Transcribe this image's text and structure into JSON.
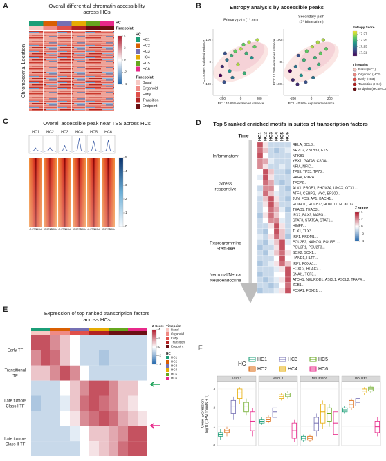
{
  "hc_groups": [
    {
      "name": "HC1",
      "color": "#1b9e77"
    },
    {
      "name": "HC2",
      "color": "#d95f02"
    },
    {
      "name": "HC3",
      "color": "#7570b3"
    },
    {
      "name": "HC4",
      "color": "#e6ab02"
    },
    {
      "name": "HC5",
      "color": "#66a61e"
    },
    {
      "name": "HC6",
      "color": "#e7298a"
    }
  ],
  "timepoints": [
    {
      "name": "Basal",
      "color": "#f7c9c4"
    },
    {
      "name": "Organoid",
      "color": "#f08a84"
    },
    {
      "name": "Early",
      "color": "#e0504a"
    },
    {
      "name": "Transition",
      "color": "#b22222"
    },
    {
      "name": "Endpoint",
      "color": "#6b0f12"
    }
  ],
  "panel_a": {
    "letter": "A",
    "title": [
      "Overall differential chromatin accessibility",
      "across HCs"
    ],
    "y_label": "Chromosomal Location",
    "hc_legend_title": "HC",
    "timepoint_legend_title": "Timepoint",
    "zlim": [
      -4,
      4
    ],
    "zticks": [
      4,
      2,
      0,
      -2,
      -4
    ]
  },
  "panel_b": {
    "letter": "B",
    "title": "Entropy analysis by accessible peaks",
    "plots": [
      {
        "subtitle": [
          "Primary path (1° arc)"
        ],
        "y_label": "PC2: 8.68% explained variance",
        "x_label": "PC1: 40.86% explained variance",
        "xlim": [
          -300,
          300
        ],
        "ylim": [
          -150,
          150
        ],
        "xticks": [
          -200,
          0,
          200
        ],
        "yticks": [
          -100,
          0,
          100
        ],
        "x": [
          -220,
          -200,
          -180,
          -150,
          -120,
          -100,
          -60,
          -30,
          0,
          30,
          60,
          90,
          120,
          150,
          180,
          -170,
          -90,
          40
        ],
        "y": [
          -60,
          -20,
          -90,
          10,
          -40,
          30,
          50,
          -10,
          60,
          80,
          40,
          90,
          20,
          70,
          100,
          40,
          -70,
          -50
        ],
        "entropy": [
          17.2,
          17.21,
          17.22,
          17.23,
          17.24,
          17.25,
          17.26,
          17.27,
          17.27,
          17.26,
          17.25,
          17.27,
          17.24,
          17.26,
          17.27,
          17.22,
          17.23,
          17.25
        ]
      },
      {
        "subtitle": [
          "Secondary path",
          "(2° bifurcation)"
        ],
        "y_label": "PC2: 12.20% explained variance",
        "x_label": "PC1: 40.86% explained variance",
        "xlim": [
          -300,
          300
        ],
        "ylim": [
          -150,
          150
        ],
        "xticks": [
          -200,
          0,
          200
        ],
        "yticks": [
          -100,
          0,
          100
        ],
        "x": [
          -230,
          -200,
          -170,
          -140,
          -110,
          -80,
          -50,
          -20,
          10,
          40,
          70,
          100,
          130,
          160,
          -150,
          -60,
          20,
          80
        ],
        "y": [
          -40,
          -80,
          -20,
          30,
          -60,
          10,
          50,
          -30,
          70,
          20,
          90,
          40,
          100,
          60,
          -100,
          -90,
          -70,
          -10
        ],
        "entropy": [
          17.2,
          17.21,
          17.23,
          17.22,
          17.24,
          17.25,
          17.26,
          17.24,
          17.27,
          17.25,
          17.27,
          17.26,
          17.27,
          17.26,
          17.21,
          17.22,
          17.23,
          17.25
        ]
      }
    ],
    "entropy_title": "Entropy Score",
    "entropy_lim": [
      17.2,
      17.28
    ],
    "entropy_ticks": [
      17.27,
      17.25,
      17.23,
      17.21
    ],
    "timepoint_title": "Timepoint",
    "timepoint_labels": [
      "Basal (HC1)",
      "Organoid (HC2)",
      "Early (HC3)",
      "Transition (HC4)",
      "Endpoint (HC5/HC6)"
    ]
  },
  "panel_c": {
    "letter": "C",
    "title": "Overall accessible peak near TSS across HCs",
    "tss_ticks": [
      "-2.0",
      "TSS",
      "2.0kb"
    ],
    "profile_ylim": [
      0,
      1
    ],
    "profile_peak": [
      0.3,
      0.35,
      0.45,
      0.85,
      0.7,
      0.75
    ],
    "color_lim": [
      0,
      5
    ],
    "color_ticks": [
      5,
      4,
      3,
      2,
      1,
      0
    ]
  },
  "panel_d": {
    "letter": "D",
    "title": "Top 5 ranked enriched motifs in suites of transcription factors",
    "time_label": "Time",
    "zlim": [
      -4,
      4
    ],
    "zticks": [
      4,
      2,
      0,
      -2,
      -4
    ],
    "z_title": "Z score",
    "categories": [
      [
        "Inflammatory"
      ],
      [
        "Stress",
        "responsive"
      ],
      [
        "Reprogramming",
        "Stem-like"
      ],
      [
        "Neuronal/Neural",
        "Neuroendocrine"
      ]
    ],
    "rows": [
      {
        "label": "RELA, BCL3...",
        "color": "#1b9e77",
        "z": [
          3,
          0.5,
          -1,
          -1,
          -1,
          -1
        ]
      },
      {
        "label": "NR2C2, ZBTB33, ETS1...",
        "color": "#1b9e77",
        "z": [
          2.5,
          1,
          -1,
          -1.5,
          -1,
          -0.5
        ]
      },
      {
        "label": "NFKB1",
        "color": "#1b9e77",
        "z": [
          3,
          0,
          -1,
          -1,
          -1,
          -1
        ]
      },
      {
        "label": "YBX1, GATA3, CSDA...",
        "color": "#1b9e77",
        "z": [
          2,
          1.5,
          -0.5,
          -1,
          -1,
          -1
        ]
      },
      {
        "label": "NFIA, NFIC...",
        "color": "#1b9e77",
        "z": [
          2,
          0.5,
          -1,
          -1,
          -0.5,
          -1
        ]
      },
      {
        "label": "TP63, TP53, TP73...",
        "color": "#d95f02",
        "z": [
          0,
          3,
          1,
          -1,
          -1,
          -1.5
        ]
      },
      {
        "label": "RARA, RXRA...",
        "color": "#d95f02",
        "z": [
          -0.5,
          3,
          0.5,
          -1,
          -1,
          -1
        ]
      },
      {
        "label": "TFCP2...",
        "color": "#d95f02",
        "z": [
          0,
          2.5,
          1.5,
          -1,
          -1.5,
          -1
        ]
      },
      {
        "label": "ALX1, PROP1, PHOX2A, UNCX, OTX1...",
        "color": "#d95f02",
        "z": [
          -1,
          2,
          2,
          0,
          -1,
          -1.5
        ]
      },
      {
        "label": "ATF4, CEBPG, MYC, EP300...",
        "color": "#d95f02",
        "z": [
          -0.5,
          2.5,
          1,
          -0.5,
          -1,
          -1
        ]
      },
      {
        "label": "JUN, FOS, AP1, BACH1...",
        "color": "#2340b5",
        "z": [
          -1,
          1,
          3,
          0.5,
          -1,
          -1.5
        ]
      },
      {
        "label": "HOXA10, HOXB13,HOXC11, HOXD12...",
        "color": "#2340b5",
        "z": [
          -1,
          0.5,
          3,
          1,
          -1,
          -1
        ]
      },
      {
        "label": "TEAD1, TEAD3...",
        "color": "#2340b5",
        "z": [
          -1,
          0,
          2.5,
          1.5,
          -0.5,
          -1.5
        ]
      },
      {
        "label": "IRX2, PAX2, MAFG...",
        "color": "#2340b5",
        "z": [
          -1.5,
          0.5,
          2.5,
          1,
          0,
          -1
        ]
      },
      {
        "label": "STAT3, STAT5A, STAT1...",
        "color": "#2340b5",
        "z": [
          -1,
          0,
          2,
          2,
          -0.5,
          -1
        ]
      },
      {
        "label": "HINFP...",
        "color": "#d4a017",
        "z": [
          -1,
          -1,
          0.5,
          3,
          0.5,
          -1
        ]
      },
      {
        "label": "TLX1, TLX3...",
        "color": "#d4a017",
        "z": [
          -1,
          -1.5,
          0,
          3,
          1,
          -1
        ]
      },
      {
        "label": "IRF1, PRDM1...",
        "color": "#d4a017",
        "z": [
          -0.5,
          -1,
          0.5,
          2.5,
          1,
          -1.5
        ]
      },
      {
        "label": "POU3F2, NANOG, POU5F1...",
        "color": "#4a9a1e",
        "z": [
          -1,
          -1.5,
          -0.5,
          1,
          3,
          -0.5
        ]
      },
      {
        "label": "POU2F1, POU2F3...",
        "color": "#4a9a1e",
        "z": [
          -1.5,
          -1,
          -1,
          0.5,
          3,
          0
        ]
      },
      {
        "label": "SOX2, SOX1...",
        "color": "#4a9a1e",
        "z": [
          -1,
          -1.5,
          -0.5,
          1,
          2.5,
          0.5
        ]
      },
      {
        "label": "HAND1, HLTF...",
        "color": "#4a9a1e",
        "z": [
          -1,
          -1,
          -1,
          0,
          3,
          0
        ]
      },
      {
        "label": "IRF7, FOXA1...",
        "color": "#4a9a1e",
        "z": [
          -1.5,
          -1,
          -0.5,
          0.5,
          2.5,
          1
        ]
      },
      {
        "label": "FOXC2, HDAC2...",
        "color": "#c2178a",
        "z": [
          -1,
          -1,
          -1,
          -0.5,
          0.5,
          3
        ]
      },
      {
        "label": "SNAI1, TCF3...",
        "color": "#c2178a",
        "z": [
          -1.5,
          -1,
          -1,
          0,
          0,
          3
        ]
      },
      {
        "label": "ATOH1, NEUROD1, ASCL1, ASCL2, TFAP4...",
        "color": "#c2178a",
        "z": [
          -1,
          -1.5,
          -1,
          -0.5,
          0.5,
          3
        ]
      },
      {
        "label": "ZEB1...",
        "color": "#c2178a",
        "z": [
          -1,
          -1,
          -1.5,
          -1,
          0,
          2.5
        ]
      },
      {
        "label": "FOXA1, FOXB1 ...",
        "color": "#c2178a",
        "z": [
          -1.5,
          -1,
          -1,
          -0.5,
          0.5,
          3
        ]
      }
    ]
  },
  "panel_e": {
    "letter": "E",
    "title": [
      "Expression of top ranked transcription factors",
      "across HCs"
    ],
    "zlim": [
      -4,
      4
    ],
    "zticks": [
      4,
      2,
      0,
      -2,
      -4
    ],
    "z_title": "Z Score",
    "timepoint_title": "Timepoint",
    "hc_title": "HC",
    "row_groups": [
      {
        "label": [
          "Early TF"
        ],
        "color": "#7a5cc0"
      },
      {
        "label": [
          "Transitional",
          "TF"
        ],
        "color": "#c9a000"
      },
      {
        "label": [
          "Late tumors",
          "Class I TF"
        ],
        "color": "#2e9a4e"
      },
      {
        "label": [
          "Late tumors",
          "Class II TF"
        ],
        "color": "#c2178a"
      }
    ],
    "matrix": [
      [
        3,
        3,
        2,
        1,
        0,
        -1,
        -1,
        -1,
        -1,
        -1,
        -1,
        -1
      ],
      [
        2,
        3,
        2.5,
        1,
        0,
        -1,
        -1,
        -1.5,
        -1,
        -1,
        -1,
        -1
      ],
      [
        1,
        1,
        2,
        3,
        2,
        0,
        -1,
        -1,
        -1,
        -1,
        -1,
        -1
      ],
      [
        -1,
        -1,
        -1,
        0,
        1,
        2,
        3,
        3,
        2,
        1,
        1,
        0
      ],
      [
        -1.5,
        -1,
        -1,
        -0.5,
        1,
        2.5,
        3,
        2.5,
        2,
        1,
        0.5,
        0
      ],
      [
        -1,
        -1,
        -1,
        0,
        0.5,
        2,
        2.5,
        3,
        2.5,
        1.5,
        1,
        0.5
      ],
      [
        -1,
        -1,
        -1,
        -1,
        -0.5,
        0,
        1,
        1,
        1.5,
        2,
        3,
        3
      ],
      [
        -1,
        -1,
        -1,
        -1,
        -1,
        0,
        0.5,
        1,
        1.5,
        2.5,
        3,
        3
      ]
    ]
  },
  "panel_f": {
    "letter": "F",
    "legend_title": "HC",
    "y_label": [
      "Gene Expression",
      "log10(CPM counts + 1)"
    ],
    "ylim": [
      0,
      3.4
    ],
    "yticks": [
      0,
      1,
      2,
      3
    ],
    "facets": [
      {
        "name": "ASCL1",
        "boxes": [
          {
            "q1": 0.5,
            "median": 0.6,
            "q3": 0.7,
            "low": 0.3,
            "high": 0.9
          },
          {
            "q1": 0.7,
            "median": 0.8,
            "q3": 0.9,
            "low": 0.5,
            "high": 1.0
          },
          {
            "q1": 1.7,
            "median": 2.1,
            "q3": 2.4,
            "low": 1.4,
            "high": 2.6
          },
          {
            "q1": 2.5,
            "median": 2.8,
            "q3": 3.0,
            "low": 2.2,
            "high": 3.1
          },
          {
            "q1": 1.8,
            "median": 2.1,
            "q3": 2.3,
            "low": 1.6,
            "high": 2.5
          },
          {
            "q1": 0.8,
            "median": 1.3,
            "q3": 1.8,
            "low": 0.5,
            "high": 2.0
          }
        ]
      },
      {
        "name": "ASCL2",
        "boxes": [
          {
            "q1": 1.2,
            "median": 1.3,
            "q3": 1.4,
            "low": 1.1,
            "high": 1.5
          },
          {
            "q1": 1.3,
            "median": 1.4,
            "q3": 1.5,
            "low": 1.2,
            "high": 1.6
          },
          {
            "q1": 1.5,
            "median": 1.8,
            "q3": 2.0,
            "low": 1.3,
            "high": 2.2
          },
          {
            "q1": 2.5,
            "median": 2.6,
            "q3": 2.7,
            "low": 2.4,
            "high": 2.8
          },
          {
            "q1": 2.6,
            "median": 2.7,
            "q3": 2.8,
            "low": 2.5,
            "high": 2.9
          },
          {
            "q1": 0.4,
            "median": 0.8,
            "q3": 1.2,
            "low": 0.2,
            "high": 1.4
          }
        ]
      },
      {
        "name": "NEUROD1",
        "boxes": [
          {
            "q1": 0.3,
            "median": 0.4,
            "q3": 0.5,
            "low": 0.2,
            "high": 0.6
          },
          {
            "q1": 0.3,
            "median": 0.4,
            "q3": 0.5,
            "low": 0.2,
            "high": 0.6
          },
          {
            "q1": 0.8,
            "median": 1.2,
            "q3": 1.5,
            "low": 0.5,
            "high": 1.7
          },
          {
            "q1": 1.2,
            "median": 1.8,
            "q3": 2.2,
            "low": 0.9,
            "high": 2.4
          },
          {
            "q1": 1.3,
            "median": 1.7,
            "q3": 2.0,
            "low": 1.0,
            "high": 2.2
          },
          {
            "q1": 0.6,
            "median": 1.2,
            "q3": 1.8,
            "low": 0.3,
            "high": 2.1
          }
        ]
      },
      {
        "name": "POU2F3",
        "boxes": [
          {
            "q1": 1.8,
            "median": 1.9,
            "q3": 2.0,
            "low": 1.7,
            "high": 2.1
          },
          {
            "q1": 2.0,
            "median": 2.2,
            "q3": 2.4,
            "low": 1.9,
            "high": 2.5
          },
          {
            "q1": 2.1,
            "median": 2.3,
            "q3": 2.5,
            "low": 1.9,
            "high": 2.7
          },
          {
            "q1": 2.8,
            "median": 2.9,
            "q3": 3.0,
            "low": 2.7,
            "high": 3.1
          },
          {
            "q1": 2.9,
            "median": 3.0,
            "q3": 3.1,
            "low": 2.8,
            "high": 3.2
          },
          {
            "q1": 0.7,
            "median": 1.0,
            "q3": 1.3,
            "low": 0.5,
            "high": 1.5
          }
        ]
      }
    ]
  }
}
